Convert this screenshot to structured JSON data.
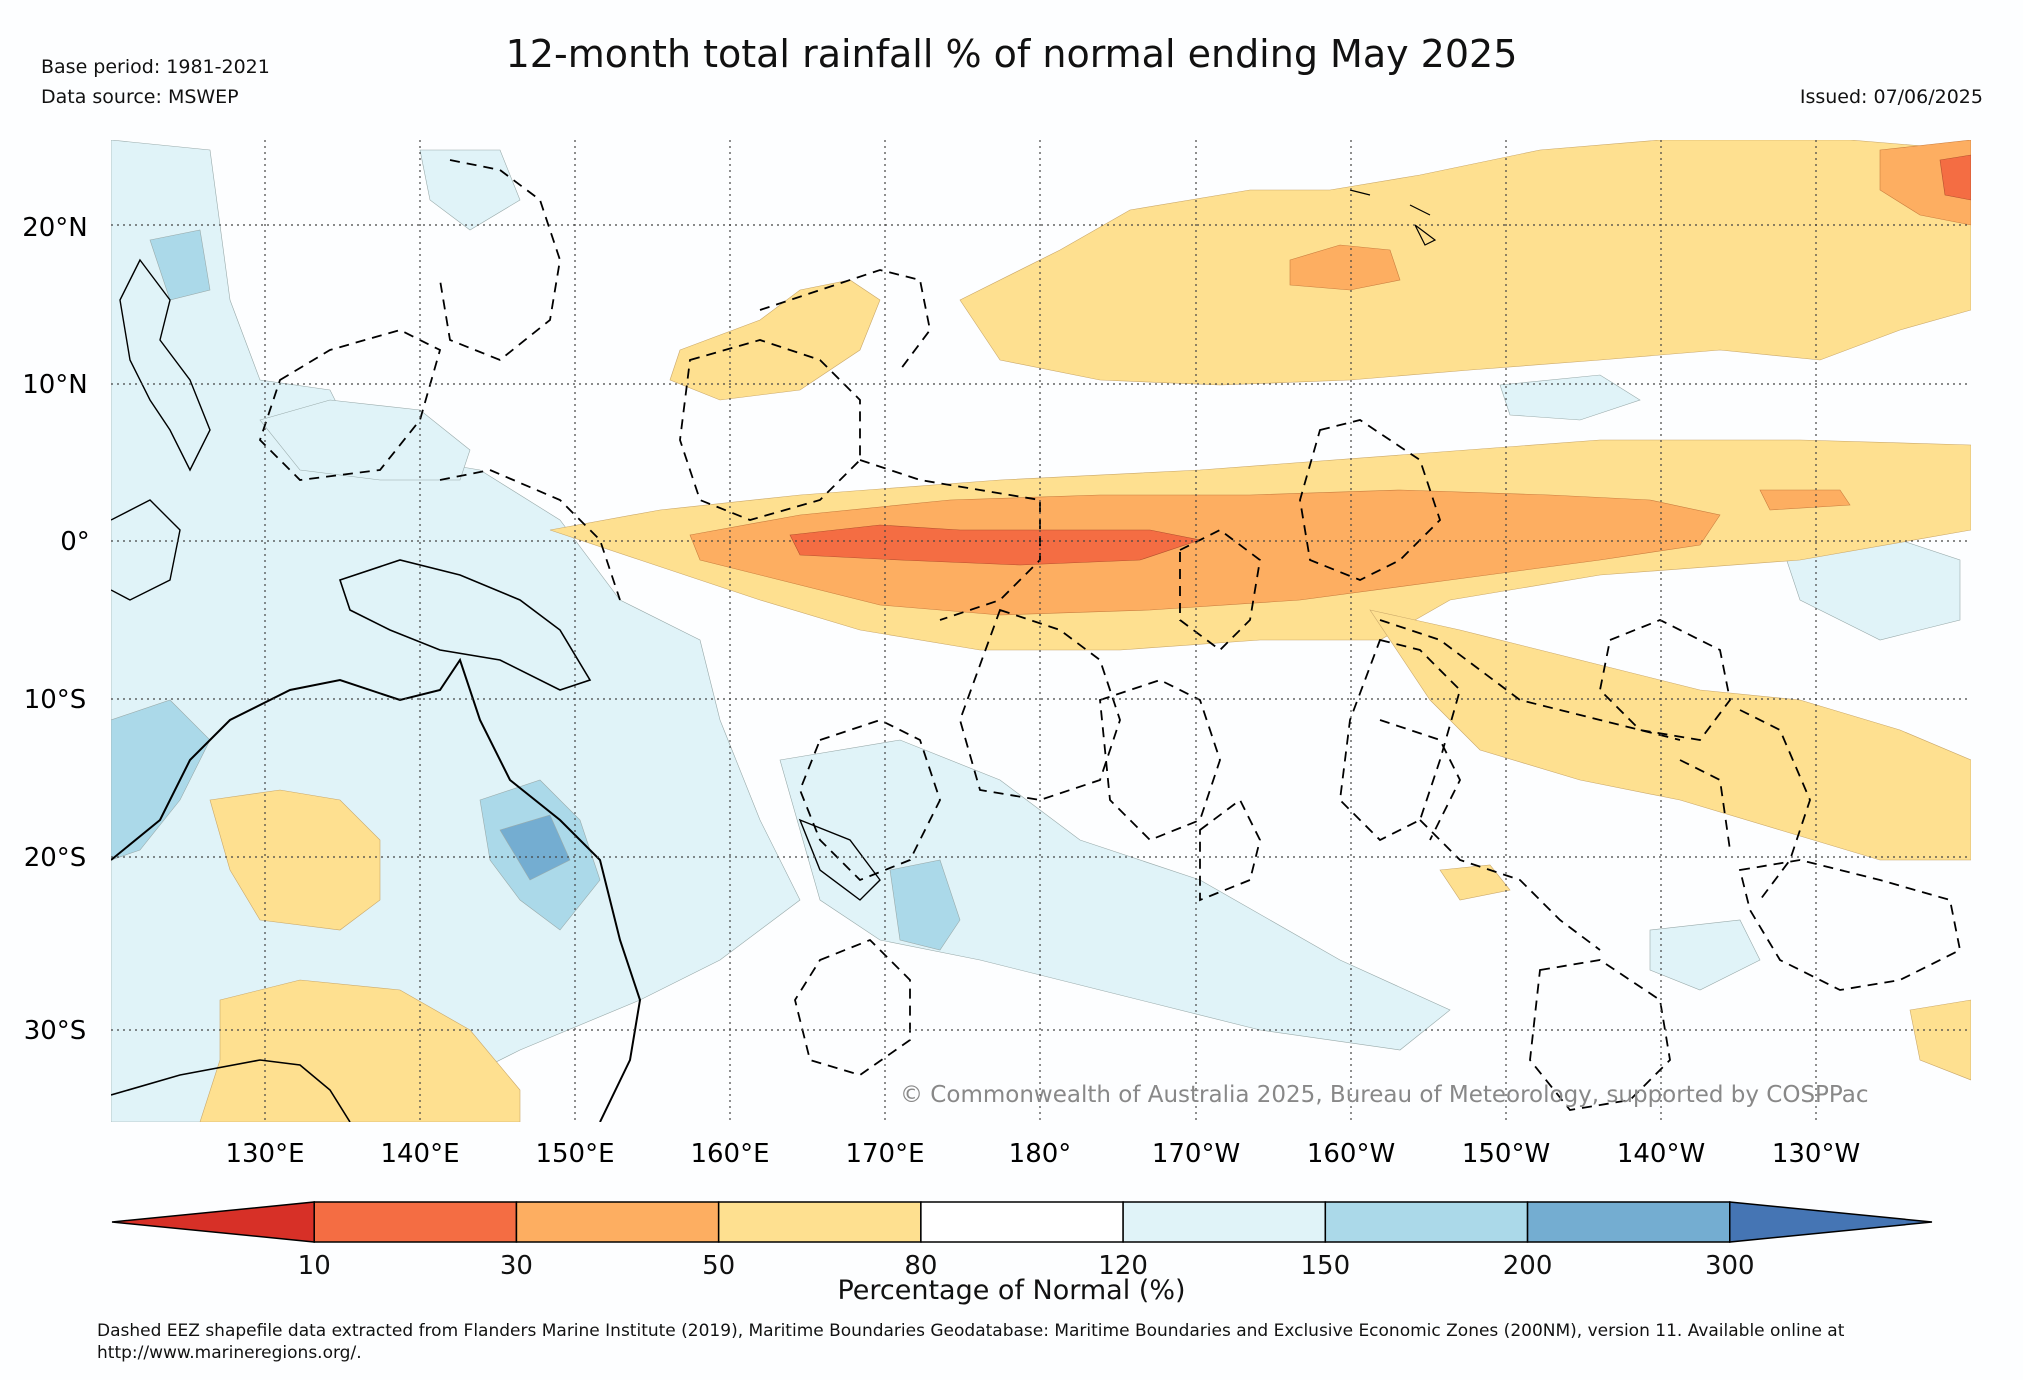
{
  "header": {
    "title": "12-month total rainfall % of normal ending May 2025",
    "base_period": "Base period: 1981-2021",
    "data_source": "Data source: MSWEP",
    "issued": "Issued: 07/06/2025"
  },
  "map": {
    "lat_labels": [
      "20°N",
      "10°N",
      "0°",
      "10°S",
      "20°S",
      "30°S"
    ],
    "lon_labels": [
      "130°E",
      "140°E",
      "150°E",
      "160°E",
      "170°E",
      "180°",
      "170°W",
      "160°W",
      "150°W",
      "140°W",
      "130°W"
    ],
    "copyright": "© Commonwealth of Australia 2025, Bureau of Meteorology, supported by COSPPac"
  },
  "colorbar": {
    "label": "Percentage of Normal (%)",
    "ticks": [
      "10",
      "30",
      "50",
      "80",
      "120",
      "150",
      "200",
      "300"
    ],
    "colors": [
      "#d73027",
      "#f46d43",
      "#fdae61",
      "#fee090",
      "#ffffff",
      "#e0f3f8",
      "#abd9e9",
      "#74add1",
      "#4575b4"
    ]
  },
  "footnote": "Dashed EEZ shapefile data extracted from Flanders Marine Institute (2019), Maritime Boundaries Geodatabase: Maritime Boundaries and Exclusive Economic Zones (200NM), version 11. Available online at http://www.marineregions.org/."
}
